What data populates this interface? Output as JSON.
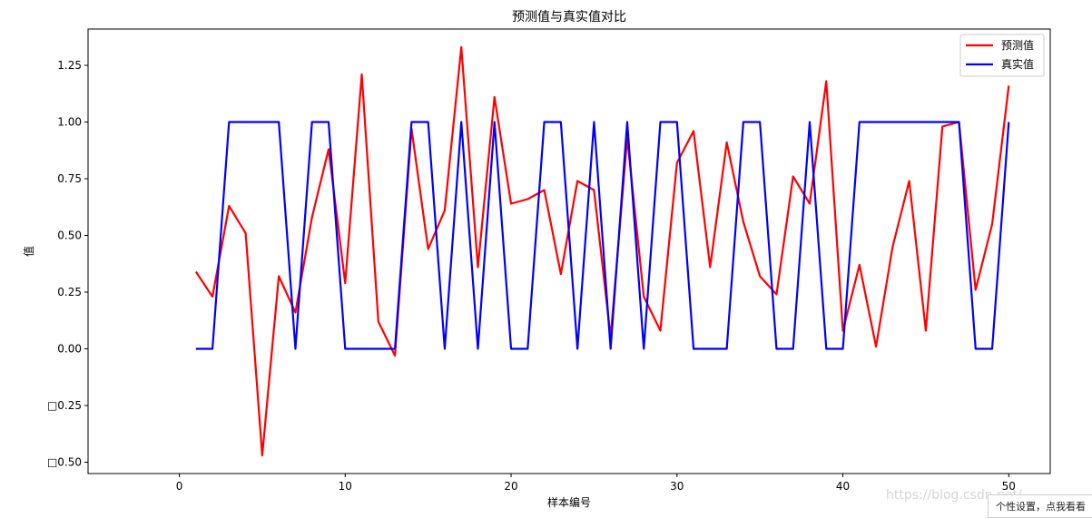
{
  "chart_data": {
    "type": "line",
    "title": "预测值与真实值对比",
    "xlabel": "样本编号",
    "ylabel": "值",
    "xlim": [
      -5.5,
      52.5
    ],
    "ylim": [
      -0.55,
      1.41
    ],
    "xticks": [
      0,
      10,
      20,
      30,
      40,
      50
    ],
    "xtick_labels": [
      "0",
      "10",
      "20",
      "30",
      "40",
      "50"
    ],
    "yticks": [
      -0.5,
      -0.25,
      0.0,
      0.25,
      0.5,
      0.75,
      1.0,
      1.25
    ],
    "ytick_labels": [
      "□0.50",
      "□0.25",
      "0.00",
      "0.25",
      "0.50",
      "0.75",
      "1.00",
      "1.25"
    ],
    "grid": false,
    "legend_position": "top-right",
    "x": [
      1,
      2,
      3,
      4,
      5,
      6,
      7,
      8,
      9,
      10,
      11,
      12,
      13,
      14,
      15,
      16,
      17,
      18,
      19,
      20,
      21,
      22,
      23,
      24,
      25,
      26,
      27,
      28,
      29,
      30,
      31,
      32,
      33,
      34,
      35,
      36,
      37,
      38,
      39,
      40,
      41,
      42,
      43,
      44,
      45,
      46,
      47,
      48,
      49,
      50
    ],
    "series": [
      {
        "name": "预测值",
        "color": "#ff0000",
        "values": [
          0.34,
          0.23,
          0.63,
          0.51,
          -0.47,
          0.32,
          0.16,
          0.58,
          0.88,
          0.29,
          1.21,
          0.12,
          -0.03,
          0.97,
          0.44,
          0.61,
          1.33,
          0.36,
          1.11,
          0.64,
          0.66,
          0.7,
          0.33,
          0.74,
          0.7,
          0.05,
          0.93,
          0.23,
          0.08,
          0.82,
          0.96,
          0.36,
          0.91,
          0.56,
          0.32,
          0.24,
          0.76,
          0.64,
          1.18,
          0.08,
          0.37,
          0.01,
          0.45,
          0.74,
          0.08,
          0.98,
          1.0,
          0.26,
          0.55,
          1.16
        ]
      },
      {
        "name": "真实值",
        "color": "#0000ff",
        "values": [
          0,
          0,
          1,
          1,
          1,
          1,
          0,
          1,
          1,
          0,
          0,
          0,
          0,
          1,
          1,
          0,
          1,
          0,
          1,
          0,
          0,
          1,
          1,
          0,
          1,
          0,
          1,
          0,
          1,
          1,
          0,
          0,
          0,
          1,
          1,
          0,
          0,
          1,
          0,
          0,
          1,
          1,
          1,
          1,
          1,
          1,
          1,
          0,
          0,
          1
        ]
      }
    ]
  },
  "watermark_text": "https://blog.csdn.net/...",
  "tip_text": "个性设置，点我看看"
}
